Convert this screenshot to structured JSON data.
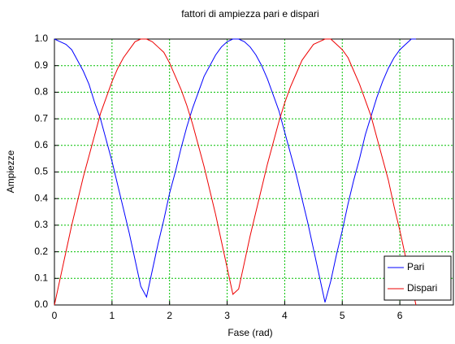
{
  "chart_data": {
    "type": "line",
    "title": "fattori di ampiezza pari e dispari",
    "xlabel": "Fase (rad)",
    "ylabel": "Ampiezze",
    "x": [
      0,
      0.1,
      0.2,
      0.3,
      0.4,
      0.5,
      0.6,
      0.7,
      0.8,
      0.9,
      1.0,
      1.1,
      1.2,
      1.3,
      1.4,
      1.5,
      1.6,
      1.7,
      1.8,
      1.9,
      2.0,
      2.1,
      2.2,
      2.3,
      2.4,
      2.5,
      2.6,
      2.7,
      2.8,
      2.9,
      3.0,
      3.1,
      3.2,
      3.3,
      3.4,
      3.5,
      3.6,
      3.7,
      3.8,
      3.9,
      4.0,
      4.1,
      4.2,
      4.3,
      4.4,
      4.5,
      4.6,
      4.7,
      4.8,
      4.9,
      5.0,
      5.1,
      5.2,
      5.3,
      5.4,
      5.5,
      5.6,
      5.7,
      5.8,
      5.9,
      6.0,
      6.1,
      6.2,
      6.28
    ],
    "series": [
      {
        "name": "Pari",
        "color": "#0000ff",
        "values": [
          1,
          0.99,
          0.98,
          0.96,
          0.92,
          0.88,
          0.83,
          0.76,
          0.7,
          0.62,
          0.54,
          0.45,
          0.36,
          0.27,
          0.17,
          0.07,
          0.03,
          0.13,
          0.23,
          0.32,
          0.42,
          0.5,
          0.59,
          0.67,
          0.74,
          0.8,
          0.86,
          0.9,
          0.94,
          0.97,
          0.99,
          1,
          1,
          0.99,
          0.97,
          0.94,
          0.9,
          0.85,
          0.79,
          0.73,
          0.65,
          0.57,
          0.49,
          0.4,
          0.31,
          0.21,
          0.11,
          0.01,
          0.09,
          0.19,
          0.28,
          0.38,
          0.47,
          0.55,
          0.64,
          0.71,
          0.78,
          0.84,
          0.89,
          0.93,
          0.96,
          0.98,
          1,
          1
        ]
      },
      {
        "name": "Dispari",
        "color": "#ee0000",
        "values": [
          0,
          0.1,
          0.2,
          0.3,
          0.39,
          0.48,
          0.56,
          0.64,
          0.72,
          0.78,
          0.84,
          0.89,
          0.93,
          0.96,
          0.99,
          1,
          1,
          0.99,
          0.97,
          0.95,
          0.91,
          0.86,
          0.81,
          0.75,
          0.68,
          0.6,
          0.52,
          0.43,
          0.34,
          0.24,
          0.14,
          0.04,
          0.06,
          0.16,
          0.26,
          0.35,
          0.44,
          0.53,
          0.61,
          0.69,
          0.76,
          0.82,
          0.87,
          0.92,
          0.95,
          0.98,
          0.99,
          1,
          1,
          0.98,
          0.96,
          0.93,
          0.88,
          0.83,
          0.77,
          0.71,
          0.63,
          0.55,
          0.47,
          0.37,
          0.28,
          0.18,
          0.08,
          0
        ]
      }
    ],
    "xlim": [
      0,
      6.93
    ],
    "ylim": [
      0,
      1
    ],
    "xticks": [
      0,
      1,
      2,
      3,
      4,
      5,
      6
    ],
    "yticks": [
      {
        "value": 0,
        "label": "0.0"
      },
      {
        "value": 0.1,
        "label": "0.1"
      },
      {
        "value": 0.2,
        "label": "0.2"
      },
      {
        "value": 0.3,
        "label": "0.3"
      },
      {
        "value": 0.4,
        "label": "0.4"
      },
      {
        "value": 0.5,
        "label": "0.5"
      },
      {
        "value": 0.6,
        "label": "0.6"
      },
      {
        "value": 0.7,
        "label": "0.7"
      },
      {
        "value": 0.8,
        "label": "0.8"
      },
      {
        "value": 0.9,
        "label": "0.9"
      },
      {
        "value": 1,
        "label": "1.0"
      }
    ],
    "grid": true,
    "legend": "lower right"
  }
}
